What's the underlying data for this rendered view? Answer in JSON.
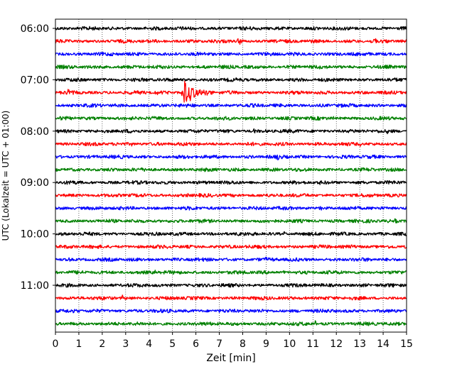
{
  "chart_data": {
    "type": "line",
    "title": "",
    "xlabel": "Zeit  [min]",
    "ylabel": "UTC (Lokalzeit = UTC + 01:00)",
    "xlim": [
      0,
      15
    ],
    "x_ticks": [
      0,
      1,
      2,
      3,
      4,
      5,
      6,
      7,
      8,
      9,
      10,
      11,
      12,
      13,
      14,
      15
    ],
    "x_tick_labels": [
      "0",
      "1",
      "2",
      "3",
      "4",
      "5",
      "6",
      "7",
      "8",
      "9",
      "10",
      "11",
      "12",
      "13",
      "14",
      "15"
    ],
    "y_tick_labels": [
      "06:00",
      "07:00",
      "08:00",
      "09:00",
      "10:00",
      "11:00"
    ],
    "y_tick_rows": [
      0,
      4,
      8,
      12,
      16,
      20
    ],
    "grid": {
      "x": true,
      "style": "dotted"
    },
    "row_interval_min": 15,
    "row_colors": [
      "#000000",
      "#ff0000",
      "#0000ff",
      "#008000"
    ],
    "traces": [
      {
        "start": "06:00",
        "events": []
      },
      {
        "start": "06:15",
        "events": [
          {
            "t": 4.05,
            "amp": 0.35
          },
          {
            "t": 7.85,
            "amp": 0.75
          },
          {
            "t": 13.7,
            "amp": 0.5
          }
        ]
      },
      {
        "start": "06:30",
        "events": []
      },
      {
        "start": "06:45",
        "events": [
          {
            "t": 6.4,
            "amp": 0.45
          }
        ]
      },
      {
        "start": "07:00",
        "events": []
      },
      {
        "start": "07:15",
        "events": [
          {
            "t": 0.55,
            "amp": 0.4
          },
          {
            "t": 4.3,
            "amp": 0.55
          },
          {
            "t": 5.45,
            "amp": 2.0
          },
          {
            "t": 14.35,
            "amp": 0.45
          }
        ]
      },
      {
        "start": "07:30",
        "events": [
          {
            "t": 3.3,
            "amp": 0.35
          }
        ]
      },
      {
        "start": "07:45",
        "events": [
          {
            "t": 0.8,
            "amp": 0.3
          },
          {
            "t": 11.9,
            "amp": 0.3
          }
        ]
      },
      {
        "start": "08:00",
        "events": [
          {
            "t": 8.5,
            "amp": 0.35
          },
          {
            "t": 14.2,
            "amp": 0.3
          }
        ]
      },
      {
        "start": "08:15",
        "events": [
          {
            "t": 3.25,
            "amp": 0.3
          },
          {
            "t": 13.0,
            "amp": 0.3
          }
        ]
      },
      {
        "start": "08:30",
        "events": [
          {
            "t": 9.5,
            "amp": 0.35
          }
        ]
      },
      {
        "start": "08:45",
        "events": []
      },
      {
        "start": "09:00",
        "events": [
          {
            "t": 0.7,
            "amp": 0.45
          },
          {
            "t": 11.25,
            "amp": 0.35
          }
        ]
      },
      {
        "start": "09:15",
        "events": [
          {
            "t": 5.65,
            "amp": 0.4
          }
        ]
      },
      {
        "start": "09:30",
        "events": [
          {
            "t": 0.3,
            "amp": 0.3
          },
          {
            "t": 11.35,
            "amp": 0.4
          }
        ]
      },
      {
        "start": "09:45",
        "events": [
          {
            "t": 14.55,
            "amp": 0.4
          }
        ]
      },
      {
        "start": "10:00",
        "events": [
          {
            "t": 7.85,
            "amp": 0.4
          },
          {
            "t": 8.85,
            "amp": 0.4
          },
          {
            "t": 9.75,
            "amp": 0.35
          }
        ]
      },
      {
        "start": "10:15",
        "events": [
          {
            "t": 12.6,
            "amp": 0.4
          }
        ]
      },
      {
        "start": "10:30",
        "events": [
          {
            "t": 0.6,
            "amp": 0.35
          },
          {
            "t": 9.0,
            "amp": 0.35
          }
        ]
      },
      {
        "start": "10:45",
        "events": [
          {
            "t": 4.25,
            "amp": 0.3
          },
          {
            "t": 9.75,
            "amp": 0.4
          }
        ]
      },
      {
        "start": "11:00",
        "events": []
      },
      {
        "start": "11:15",
        "events": [
          {
            "t": 2.85,
            "amp": 0.3
          },
          {
            "t": 10.7,
            "amp": 0.45
          }
        ]
      },
      {
        "start": "11:30",
        "events": [
          {
            "t": 0.9,
            "amp": 0.3
          }
        ]
      },
      {
        "start": "11:45",
        "events": [
          {
            "t": 11.1,
            "amp": 0.4
          }
        ]
      }
    ]
  }
}
